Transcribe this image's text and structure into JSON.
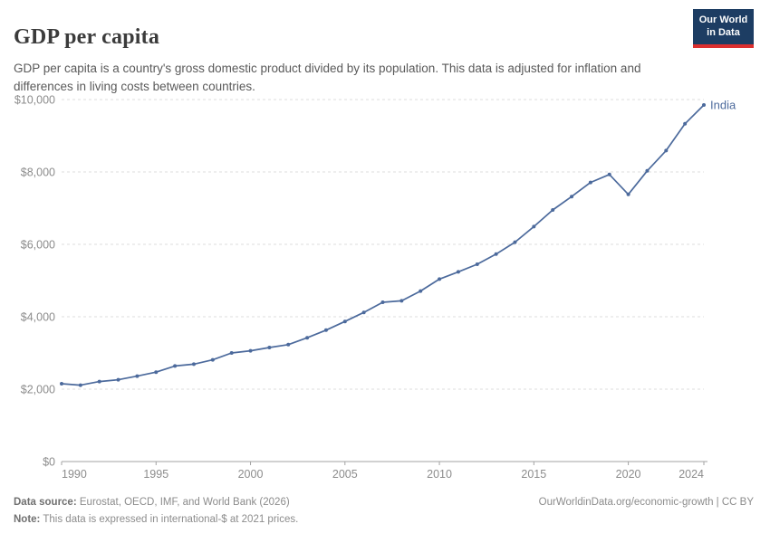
{
  "header": {
    "title": "GDP per capita",
    "subtitle": "GDP per capita is a country's gross domestic product divided by its population. This data is adjusted for inflation and differences in living costs between countries.",
    "logo": {
      "line1": "Our World",
      "line2": "in Data",
      "bg_color": "#1d3d63",
      "accent_color": "#dc2f2f"
    }
  },
  "chart_data": {
    "type": "line",
    "title": "GDP per capita",
    "xlabel": "",
    "ylabel": "",
    "x": [
      1990,
      1991,
      1992,
      1993,
      1994,
      1995,
      1996,
      1997,
      1998,
      1999,
      2000,
      2001,
      2002,
      2003,
      2004,
      2005,
      2006,
      2007,
      2008,
      2009,
      2010,
      2011,
      2012,
      2013,
      2014,
      2015,
      2016,
      2017,
      2018,
      2019,
      2020,
      2021,
      2022,
      2023,
      2024
    ],
    "series": [
      {
        "name": "India",
        "color": "#4c6a9c",
        "values": [
          2150,
          2110,
          2210,
          2260,
          2360,
          2470,
          2640,
          2690,
          2810,
          3000,
          3060,
          3150,
          3230,
          3420,
          3630,
          3870,
          4120,
          4400,
          4440,
          4710,
          5040,
          5240,
          5450,
          5730,
          6060,
          6490,
          6950,
          7320,
          7710,
          7930,
          7380,
          8030,
          8590,
          9330,
          9850
        ]
      }
    ],
    "xlim": [
      1990,
      2024
    ],
    "ylim": [
      0,
      10000
    ],
    "x_ticks": [
      1990,
      1995,
      2000,
      2005,
      2010,
      2015,
      2020,
      2024
    ],
    "y_ticks": [
      0,
      2000,
      4000,
      6000,
      8000,
      10000
    ],
    "y_tick_labels": [
      "$0",
      "$2,000",
      "$4,000",
      "$6,000",
      "$8,000",
      "$10,000"
    ],
    "grid": "horizontal-dashed",
    "grid_color": "#dcdcdc",
    "axis_color": "#a3a3a3",
    "tick_label_color": "#8c8c8c",
    "legend_position": "end-of-line",
    "end_label": "India"
  },
  "footer": {
    "source_label": "Data source:",
    "source_text": "Eurostat, OECD, IMF, and World Bank (2026)",
    "note_label": "Note:",
    "note_text": "This data is expressed in international-$ at 2021 prices.",
    "right_text": "OurWorldinData.org/economic-growth | CC BY"
  }
}
